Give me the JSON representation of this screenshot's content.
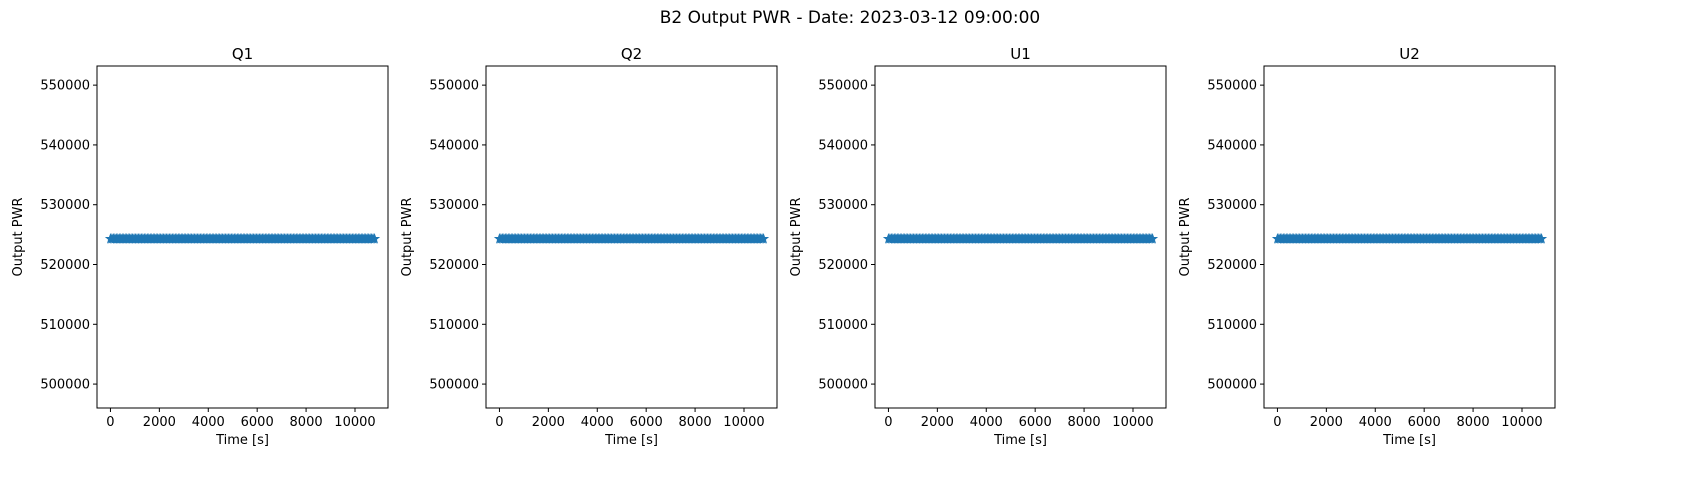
{
  "figure": {
    "suptitle": "B2 Output PWR - Date: 2023-03-12 09:00:00"
  },
  "chart_data": [
    {
      "type": "scatter",
      "title": "Q1",
      "xlabel": "Time [s]",
      "ylabel": "Output PWR",
      "xlim": [
        -550,
        11350
      ],
      "ylim": [
        496000,
        553200
      ],
      "xticks": [
        0,
        2000,
        4000,
        6000,
        8000,
        10000
      ],
      "yticks": [
        500000,
        510000,
        520000,
        530000,
        540000,
        550000
      ],
      "grid": false,
      "marker": "*",
      "series": [
        {
          "color": "#1f77b4",
          "x_range": [
            0,
            10800
          ],
          "y_constant": 524288,
          "n_points": 180
        }
      ]
    },
    {
      "type": "scatter",
      "title": "Q2",
      "xlabel": "Time [s]",
      "ylabel": "Output PWR",
      "xlim": [
        -550,
        11350
      ],
      "ylim": [
        496000,
        553200
      ],
      "xticks": [
        0,
        2000,
        4000,
        6000,
        8000,
        10000
      ],
      "yticks": [
        500000,
        510000,
        520000,
        530000,
        540000,
        550000
      ],
      "grid": false,
      "marker": "*",
      "series": [
        {
          "color": "#1f77b4",
          "x_range": [
            0,
            10800
          ],
          "y_constant": 524288,
          "n_points": 180
        }
      ]
    },
    {
      "type": "scatter",
      "title": "U1",
      "xlabel": "Time [s]",
      "ylabel": "Output PWR",
      "xlim": [
        -550,
        11350
      ],
      "ylim": [
        496000,
        553200
      ],
      "xticks": [
        0,
        2000,
        4000,
        6000,
        8000,
        10000
      ],
      "yticks": [
        500000,
        510000,
        520000,
        530000,
        540000,
        550000
      ],
      "grid": false,
      "marker": "*",
      "series": [
        {
          "color": "#1f77b4",
          "x_range": [
            0,
            10800
          ],
          "y_constant": 524288,
          "n_points": 180
        }
      ]
    },
    {
      "type": "scatter",
      "title": "U2",
      "xlabel": "Time [s]",
      "ylabel": "Output PWR",
      "xlim": [
        -550,
        11350
      ],
      "ylim": [
        496000,
        553200
      ],
      "xticks": [
        0,
        2000,
        4000,
        6000,
        8000,
        10000
      ],
      "yticks": [
        500000,
        510000,
        520000,
        530000,
        540000,
        550000
      ],
      "grid": false,
      "marker": "*",
      "series": [
        {
          "color": "#1f77b4",
          "x_range": [
            0,
            10800
          ],
          "y_constant": 524288,
          "n_points": 180
        }
      ]
    }
  ]
}
